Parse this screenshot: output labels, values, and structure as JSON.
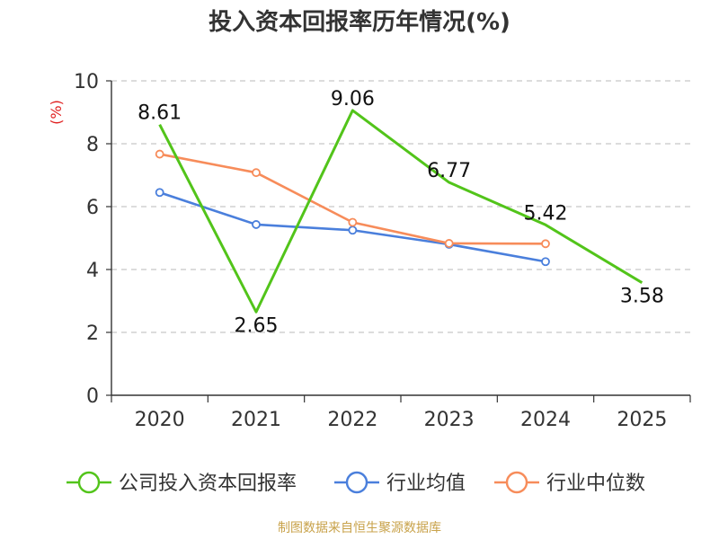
{
  "chart_data": {
    "type": "line",
    "title": "投入资本回报率历年情况(%)",
    "ylabel": "(%)",
    "xlabel": "",
    "ylim": [
      0,
      10
    ],
    "yticks": [
      0,
      2,
      4,
      6,
      8,
      10
    ],
    "grid": true,
    "legend_position": "bottom",
    "categories": [
      "2020",
      "2021",
      "2022",
      "2023",
      "2024",
      "2025"
    ],
    "series": [
      {
        "name": "公司投入资本回报率",
        "color": "#52c41a",
        "values": [
          8.61,
          2.65,
          9.06,
          6.77,
          5.42,
          3.58
        ],
        "labels": [
          "8.61",
          "2.65",
          "9.06",
          "6.77",
          "5.42",
          "3.58"
        ]
      },
      {
        "name": "行业均值",
        "color": "#4a7fdc",
        "values": [
          6.45,
          5.43,
          5.25,
          4.8,
          4.25,
          null
        ]
      },
      {
        "name": "行业中位数",
        "color": "#f78c5a",
        "values": [
          7.67,
          7.08,
          5.5,
          4.83,
          4.82,
          null
        ]
      }
    ],
    "source": "制图数据来自恒生聚源数据库"
  }
}
